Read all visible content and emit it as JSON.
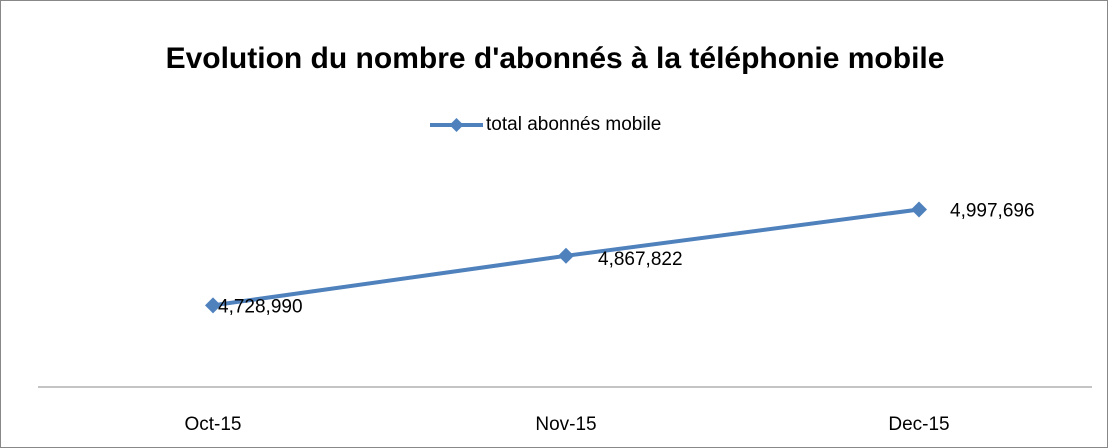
{
  "chart_data": {
    "type": "line",
    "title": "Evolution du nombre d'abonnés à la téléphonie mobile",
    "categories": [
      "Oct-15",
      "Nov-15",
      "Dec-15"
    ],
    "series": [
      {
        "name": "total abonnés mobile",
        "color": "#4f81bd",
        "values": [
          4728990,
          4867822,
          4997696
        ],
        "value_labels": [
          "4,728,990",
          "4,867,822",
          "4,997,696"
        ]
      }
    ],
    "ylim": [
      4500000,
      5100000
    ],
    "legend": "top"
  }
}
